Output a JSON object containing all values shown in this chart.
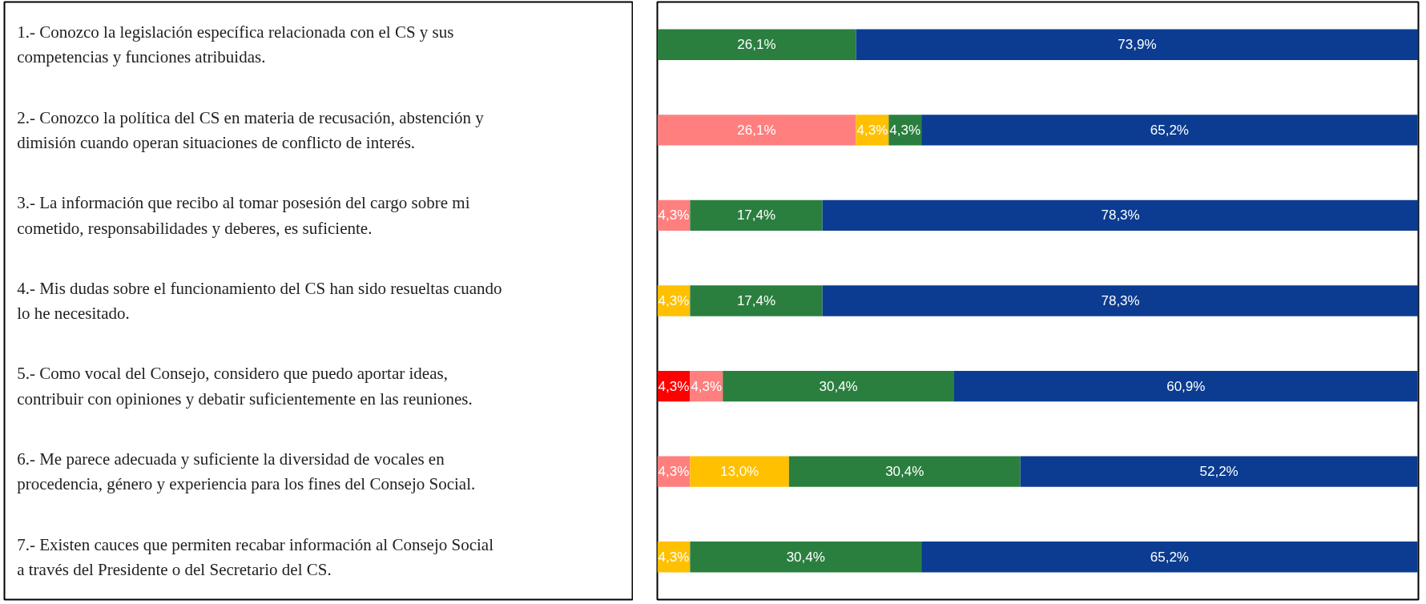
{
  "chart_data": {
    "type": "bar",
    "orientation": "horizontal",
    "stacked": true,
    "tick_labels": "y",
    "grid": false,
    "xlim": [
      0,
      100
    ],
    "categories": [
      "1.- Conozco la legislación específica relacionada con el CS y sus competencias y funciones atribuidas.",
      "2.- Conozco la política del CS en materia de recusación, abstención y dimisión cuando operan situaciones de conflicto de interés.",
      "3.- La información que recibo al tomar posesión del cargo sobre mi cometido, responsabilidades y deberes, es suficiente.",
      "4.- Mis dudas sobre el funcionamiento del CS han sido resueltas cuando lo he necesitado.",
      "5.- Como vocal del Consejo, considero que puedo aportar ideas, contribuir con opiniones y debatir suficientemente en las reuniones.",
      "6.- Me parece adecuada y suficiente la diversidad de vocales en procedencia, género y experiencia para los fines del Consejo Social.",
      "7.- Existen cauces que permiten recabar información al Consejo Social a través del Presidente o del Secretario del CS."
    ],
    "series": [
      {
        "color": "#ff0000",
        "values": [
          null,
          null,
          null,
          null,
          4.3,
          null,
          null
        ],
        "value_labels": [
          null,
          null,
          null,
          null,
          "4,3%",
          null,
          null
        ]
      },
      {
        "color": "#ff7f7f",
        "values": [
          null,
          26.1,
          4.3,
          null,
          4.3,
          4.3,
          null
        ],
        "value_labels": [
          null,
          "26,1%",
          "4,3%",
          null,
          "4,3%",
          "4,3%",
          null
        ]
      },
      {
        "color": "#ffc000",
        "values": [
          null,
          4.3,
          null,
          4.3,
          null,
          13.0,
          4.3
        ],
        "value_labels": [
          null,
          "4,3%",
          null,
          "4,3%",
          null,
          "13,0%",
          "4,3%"
        ]
      },
      {
        "color": "#2a7f3f",
        "values": [
          26.1,
          4.3,
          17.4,
          17.4,
          30.4,
          30.4,
          30.4
        ],
        "value_labels": [
          "26,1%",
          "4,3%",
          "17,4%",
          "17,4%",
          "30,4%",
          "30,4%",
          "30,4%"
        ]
      },
      {
        "color": "#0b3c91",
        "values": [
          73.9,
          65.2,
          78.3,
          78.3,
          60.9,
          52.2,
          65.2
        ],
        "value_labels": [
          "73,9%",
          "65,2%",
          "78,3%",
          "78,3%",
          "60,9%",
          "52,2%",
          "65,2%"
        ]
      }
    ]
  }
}
